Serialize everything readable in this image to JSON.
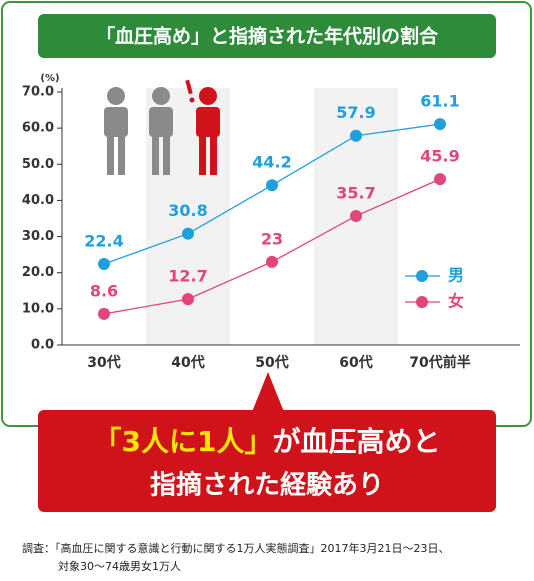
{
  "chart_data": {
    "type": "line",
    "title": "「血圧高め」と指摘された年代別の割合",
    "ylabel": "(%)",
    "categories": [
      "30代",
      "40代",
      "50代",
      "60代",
      "70代前半"
    ],
    "series": [
      {
        "name": "男",
        "color": "#1fa0dc",
        "values": [
          22.4,
          30.8,
          44.2,
          57.9,
          61.1
        ]
      },
      {
        "name": "女",
        "color": "#e0457e",
        "values": [
          8.6,
          12.7,
          23,
          35.7,
          45.9
        ]
      }
    ],
    "ylim": [
      0,
      70
    ],
    "yticks": [
      {
        "value": 0,
        "label": "0.0"
      },
      {
        "value": 10,
        "label": "10.0"
      },
      {
        "value": 20,
        "label": "20.0"
      },
      {
        "value": 30,
        "label": "30.0"
      },
      {
        "value": 40,
        "label": "40.0"
      },
      {
        "value": 50,
        "label": "50.0"
      },
      {
        "value": 60,
        "label": "60.0"
      },
      {
        "value": 70,
        "label": "70.0"
      }
    ],
    "callout": {
      "highlight": "「3人に1人」",
      "rest": "が血圧高めと",
      "line2": "指摘された経験あり"
    },
    "source": [
      "調査：「高血圧に関する意識と行動に関する1万人実態調査」2017年3月21日～23日、",
      "対象30～74歳男女1万人"
    ]
  }
}
